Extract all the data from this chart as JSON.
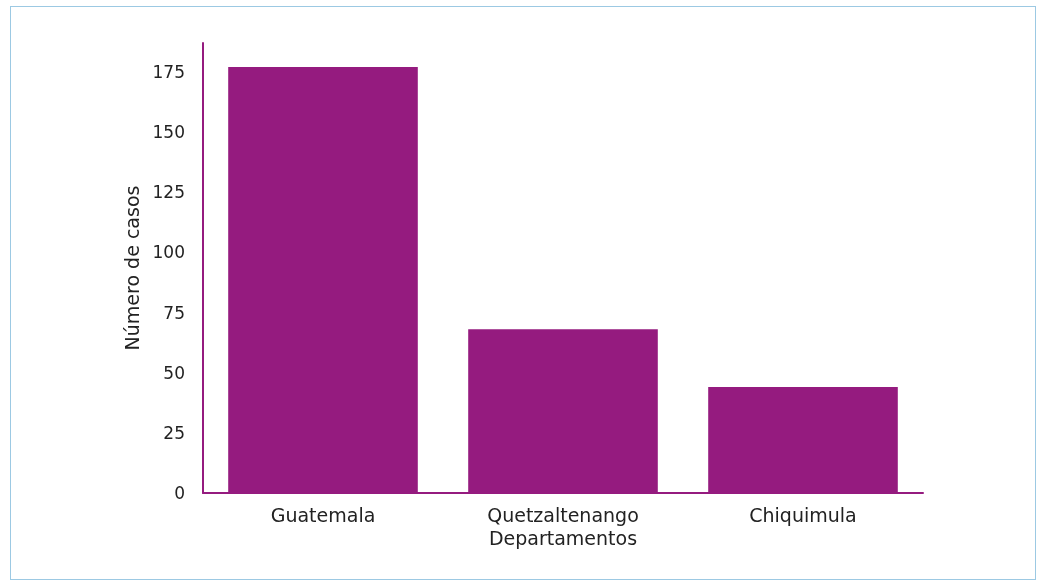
{
  "chart_data": {
    "type": "bar",
    "categories": [
      "Guatemala",
      "Quetzaltenango",
      "Chiquimula"
    ],
    "values": [
      177,
      68,
      44
    ],
    "color": "#951b7f",
    "xlabel": "Departamentos",
    "ylabel": "Número de casos",
    "ylim": [
      0,
      187
    ],
    "yticks": [
      0,
      25,
      50,
      75,
      100,
      125,
      150,
      175
    ],
    "grid": false
  }
}
